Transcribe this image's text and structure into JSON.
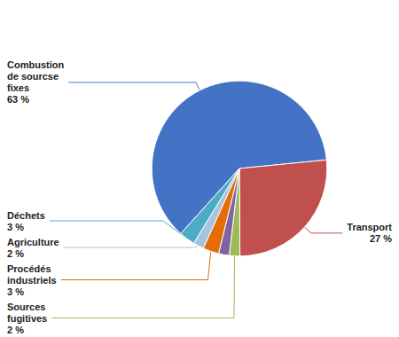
{
  "chart_data": {
    "type": "pie",
    "categories": [
      "Combustion\nde sourcse\nfixes",
      "Transport",
      "Sources\nfugitives",
      null,
      "Procédés\nindustriels",
      "Agriculture",
      "Déchets"
    ],
    "values": [
      63,
      27,
      2,
      2,
      3,
      2,
      3
    ],
    "value_labels": [
      "63 %",
      "27 %",
      "2 %",
      null,
      "3 %",
      "2 %",
      "3 %"
    ],
    "colors": [
      "#4472C4",
      "#C0504D",
      "#9BBB59",
      "#8064A2",
      "#E36C09",
      "#A8C4DC",
      "#4BACC6"
    ],
    "data_labels": true
  }
}
